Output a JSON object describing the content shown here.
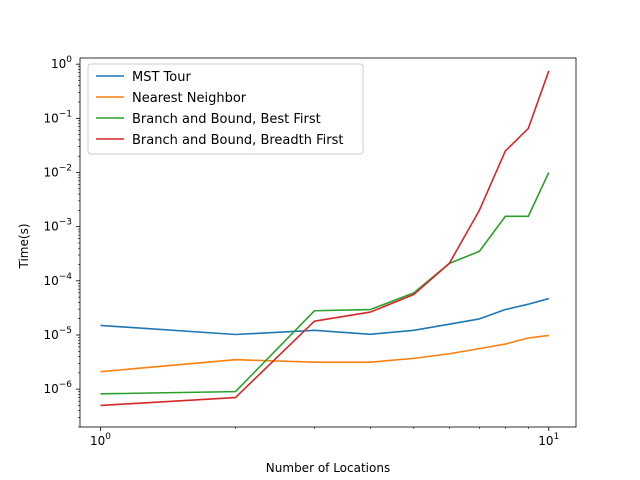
{
  "chart_data": {
    "type": "line",
    "xscale": "log",
    "yscale": "log",
    "xlabel": "Number of Locations",
    "ylabel": "Time(s)",
    "xlim": [
      0.9,
      11.5
    ],
    "ylim": [
      2e-07,
      1.3
    ],
    "grid": false,
    "legend_position": "top-left",
    "x_ticks": [
      {
        "value": 1,
        "base": "10",
        "exp": "0"
      },
      {
        "value": 10,
        "base": "10",
        "exp": "1"
      }
    ],
    "y_ticks": [
      {
        "value": 1e-06,
        "base": "10",
        "exp": "−6"
      },
      {
        "value": 1e-05,
        "base": "10",
        "exp": "−5"
      },
      {
        "value": 0.0001,
        "base": "10",
        "exp": "−4"
      },
      {
        "value": 0.001,
        "base": "10",
        "exp": "−3"
      },
      {
        "value": 0.01,
        "base": "10",
        "exp": "−2"
      },
      {
        "value": 0.1,
        "base": "10",
        "exp": "−1"
      },
      {
        "value": 1,
        "base": "10",
        "exp": "0"
      }
    ],
    "x": [
      1,
      2,
      3,
      4,
      5,
      6,
      7,
      8,
      9,
      10
    ],
    "series": [
      {
        "name": "MST Tour",
        "color": "#1f77b4",
        "values": [
          1.5e-05,
          1.02e-05,
          1.22e-05,
          1.03e-05,
          1.22e-05,
          1.58e-05,
          1.98e-05,
          2.95e-05,
          3.7e-05,
          4.7e-05
        ]
      },
      {
        "name": "Nearest Neighbor",
        "color": "#ff7f0e",
        "values": [
          2.1e-06,
          3.5e-06,
          3.15e-06,
          3.15e-06,
          3.7e-06,
          4.5e-06,
          5.6e-06,
          6.8e-06,
          8.8e-06,
          9.8e-06
        ]
      },
      {
        "name": "Branch and Bound, Best First",
        "color": "#2ca02c",
        "values": [
          8.2e-07,
          9e-07,
          2.8e-05,
          2.95e-05,
          6e-05,
          0.00021,
          0.00035,
          0.00155,
          0.00155,
          0.01
        ]
      },
      {
        "name": "Branch and Bound, Breadth First",
        "color": "#d62728",
        "values": [
          5e-07,
          7e-07,
          1.8e-05,
          2.65e-05,
          5.6e-05,
          0.00021,
          0.002,
          0.025,
          0.065,
          0.75
        ]
      }
    ]
  }
}
